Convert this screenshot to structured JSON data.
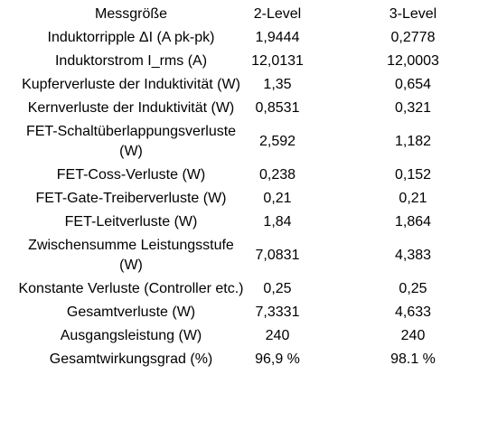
{
  "table": {
    "header": [
      "Messgröße",
      "2-Level",
      "3-Level"
    ],
    "rows": [
      [
        "Induktorripple ΔI (A pk-pk)",
        "1,9444",
        "0,2778"
      ],
      [
        "Induktorstrom I_rms (A)",
        "12,0131",
        "12,0003"
      ],
      [
        "Kupferverluste der Induktivität (W)",
        "1,35",
        "0,654"
      ],
      [
        "Kernverluste der Induktivität (W)",
        "0,8531",
        "0,321"
      ],
      [
        "FET-Schaltüberlappungsverluste (W)",
        "2,592",
        "1,182"
      ],
      [
        "FET-Coss-Verluste (W)",
        "0,238",
        "0,152"
      ],
      [
        "FET-Gate-Treiberverluste (W)",
        "0,21",
        "0,21"
      ],
      [
        "FET-Leitverluste (W)",
        "1,84",
        "1,864"
      ],
      [
        "Zwischensumme Leistungsstufe (W)",
        "7,0831",
        "4,383"
      ],
      [
        "Konstante Verluste (Controller etc.)",
        "0,25",
        "0,25"
      ],
      [
        "Gesamtverluste (W)",
        "7,3331",
        "4,633"
      ],
      [
        "Ausgangsleistung (W)",
        "240",
        "240"
      ],
      [
        "Gesamtwirkungsgrad (%)",
        "96,9 %",
        "98.1 %"
      ]
    ]
  }
}
